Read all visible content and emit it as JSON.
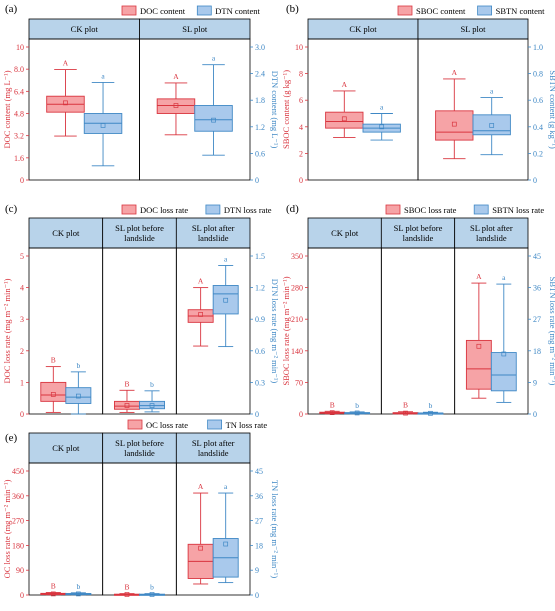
{
  "colors": {
    "red_fill": "#f6a3a6",
    "red_line": "#d9353f",
    "blue_fill": "#a9c9ec",
    "blue_line": "#3f88c5",
    "strip": "#b8d3ea"
  },
  "chart_data": [
    {
      "panel": "(a)",
      "type": "box",
      "legend": [
        "DOC content",
        "DTN content"
      ],
      "ylabel_left": "DOC content (mg L⁻¹)",
      "ylabel_right": "DTN content (mg L⁻¹)",
      "ylim_left": [
        0,
        10
      ],
      "ylim_right": [
        0,
        3.0
      ],
      "yticks_left": [
        "0",
        "1.6",
        "3.2",
        "4.8",
        "6.4",
        "8.0",
        "10"
      ],
      "yticks_right": [
        "0",
        "0.6",
        "1.2",
        "1.8",
        "2.4",
        "3.0"
      ],
      "facets": [
        {
          "label": "CK plot",
          "boxes": [
            {
              "series": "DOC content",
              "min": 3.3,
              "q1": 5.1,
              "median": 5.7,
              "q3": 6.3,
              "max": 8.3,
              "mean": 5.8,
              "sig": "A"
            },
            {
              "series": "DTN content",
              "min": 0.32,
              "q1": 1.05,
              "median": 1.28,
              "q3": 1.5,
              "max": 2.2,
              "mean": 1.23,
              "sig": "a"
            }
          ]
        },
        {
          "label": "SL plot",
          "boxes": [
            {
              "series": "DOC content",
              "min": 3.4,
              "q1": 5.0,
              "median": 5.6,
              "q3": 6.1,
              "max": 7.3,
              "mean": 5.6,
              "sig": "A"
            },
            {
              "series": "DTN content",
              "min": 0.56,
              "q1": 1.1,
              "median": 1.36,
              "q3": 1.68,
              "max": 2.6,
              "mean": 1.35,
              "sig": "a"
            }
          ]
        }
      ]
    },
    {
      "panel": "(b)",
      "type": "box",
      "legend": [
        "SBOC content",
        "SBTN content"
      ],
      "ylabel_left": "SBOC content (g kg⁻¹)",
      "ylabel_right": "SBTN content (g kg⁻¹)",
      "ylim_left": [
        0,
        10
      ],
      "ylim_right": [
        0,
        1.0
      ],
      "yticks_left": [
        "0",
        "2",
        "4",
        "6",
        "8",
        "10"
      ],
      "yticks_right": [
        "0",
        "0.2",
        "0.4",
        "0.6",
        "0.8",
        "1.0"
      ],
      "facets": [
        {
          "label": "CK plot",
          "boxes": [
            {
              "series": "SBOC content",
              "min": 3.2,
              "q1": 3.9,
              "median": 4.4,
              "q3": 5.1,
              "max": 6.7,
              "mean": 4.6,
              "sig": "A"
            },
            {
              "series": "SBTN content",
              "min": 0.3,
              "q1": 0.36,
              "median": 0.39,
              "q3": 0.42,
              "max": 0.5,
              "mean": 0.4,
              "sig": "a"
            }
          ]
        },
        {
          "label": "SL plot",
          "boxes": [
            {
              "series": "SBOC content",
              "min": 1.6,
              "q1": 3.0,
              "median": 3.6,
              "q3": 5.2,
              "max": 7.6,
              "mean": 4.2,
              "sig": "A"
            },
            {
              "series": "SBTN content",
              "min": 0.19,
              "q1": 0.34,
              "median": 0.37,
              "q3": 0.49,
              "max": 0.62,
              "mean": 0.41,
              "sig": "a"
            }
          ]
        }
      ]
    },
    {
      "panel": "(c)",
      "type": "box",
      "legend": [
        "DOC loss rate",
        "DTN loss rate"
      ],
      "ylabel_left": "DOC loss rate (mg m⁻² min⁻¹)",
      "ylabel_right": "DTN loss rate (mg m⁻² min⁻¹)",
      "ylim_left": [
        0,
        5
      ],
      "ylim_right": [
        0,
        1.5
      ],
      "yticks_left": [
        "0",
        "1",
        "2",
        "3",
        "4",
        "5"
      ],
      "yticks_right": [
        "0",
        "0.3",
        "0.6",
        "0.9",
        "1.2",
        "1.5"
      ],
      "facets": [
        {
          "label": "CK plot",
          "boxes": [
            {
              "series": "DOC loss rate",
              "min": 0.05,
              "q1": 0.4,
              "median": 0.6,
              "q3": 1.0,
              "max": 1.5,
              "mean": 0.62,
              "sig": "B"
            },
            {
              "series": "DTN loss rate",
              "min": 0.0,
              "q1": 0.1,
              "median": 0.16,
              "q3": 0.25,
              "max": 0.4,
              "mean": 0.17,
              "sig": "b"
            }
          ]
        },
        {
          "label": "SL plot before landslide",
          "boxes": [
            {
              "series": "DOC loss rate",
              "min": 0.05,
              "q1": 0.15,
              "median": 0.25,
              "q3": 0.4,
              "max": 0.75,
              "mean": 0.27,
              "sig": "B"
            },
            {
              "series": "DTN loss rate",
              "min": 0.02,
              "q1": 0.05,
              "median": 0.08,
              "q3": 0.12,
              "max": 0.22,
              "mean": 0.08,
              "sig": "b"
            }
          ]
        },
        {
          "label": "SL plot after landslide",
          "boxes": [
            {
              "series": "DOC loss rate",
              "min": 2.15,
              "q1": 2.9,
              "median": 3.1,
              "q3": 3.3,
              "max": 4.0,
              "mean": 3.15,
              "sig": "A"
            },
            {
              "series": "DTN loss rate",
              "min": 0.64,
              "q1": 0.95,
              "median": 1.14,
              "q3": 1.22,
              "max": 1.41,
              "mean": 1.08,
              "sig": "a"
            }
          ]
        }
      ]
    },
    {
      "panel": "(d)",
      "type": "box",
      "legend": [
        "SBOC loss rate",
        "SBTN loss rate"
      ],
      "ylabel_left": "SBOC loss rate (mg m⁻² min⁻¹)",
      "ylabel_right": "SBTN loss rate (mg m⁻² min⁻¹)",
      "ylim_left": [
        0,
        350
      ],
      "ylim_right": [
        0,
        45
      ],
      "yticks_left": [
        "0",
        "70",
        "140",
        "210",
        "280",
        "350"
      ],
      "yticks_right": [
        "0",
        "9",
        "18",
        "27",
        "36",
        "45"
      ],
      "facets": [
        {
          "label": "CK plot",
          "boxes": [
            {
              "series": "SBOC loss rate",
              "min": 0.5,
              "q1": 1.5,
              "median": 3,
              "q3": 4,
              "max": 6,
              "mean": 3,
              "sig": "B"
            },
            {
              "series": "SBTN loss rate",
              "min": 0.05,
              "q1": 0.2,
              "median": 0.3,
              "q3": 0.4,
              "max": 0.6,
              "mean": 0.3,
              "sig": "b"
            }
          ]
        },
        {
          "label": "SL plot before landslide",
          "boxes": [
            {
              "series": "SBOC loss rate",
              "min": 0.3,
              "q1": 1,
              "median": 2,
              "q3": 3,
              "max": 5,
              "mean": 2,
              "sig": "B"
            },
            {
              "series": "SBTN loss rate",
              "min": 0.03,
              "q1": 0.1,
              "median": 0.2,
              "q3": 0.3,
              "max": 0.5,
              "mean": 0.2,
              "sig": "b"
            }
          ]
        },
        {
          "label": "SL plot after landslide",
          "boxes": [
            {
              "series": "SBOC loss rate",
              "min": 35,
              "q1": 55,
              "median": 100,
              "q3": 163,
              "max": 290,
              "mean": 150,
              "sig": "A"
            },
            {
              "series": "SBTN loss rate",
              "min": 3.3,
              "q1": 6.6,
              "median": 11.1,
              "q3": 17.5,
              "max": 37,
              "mean": 17.1,
              "sig": "a"
            }
          ]
        }
      ]
    },
    {
      "panel": "(e)",
      "type": "box",
      "legend": [
        "OC loss rate",
        "TN loss rate"
      ],
      "ylabel_left": "OC loss rate (mg m⁻² min⁻¹)",
      "ylabel_right": "TN loss rate (mg m⁻² min⁻¹)",
      "ylim_left": [
        0,
        450
      ],
      "ylim_right": [
        0,
        45
      ],
      "yticks_left": [
        "0",
        "90",
        "180",
        "270",
        "360",
        "450"
      ],
      "yticks_right": [
        "0",
        "9",
        "18",
        "27",
        "36",
        "45"
      ],
      "facets": [
        {
          "label": "CK plot",
          "boxes": [
            {
              "series": "OC loss rate",
              "min": 1,
              "q1": 2,
              "median": 4,
              "q3": 6,
              "max": 9,
              "mean": 4,
              "sig": "B"
            },
            {
              "series": "TN loss rate",
              "min": 0.1,
              "q1": 0.2,
              "median": 0.35,
              "q3": 0.55,
              "max": 0.8,
              "mean": 0.4,
              "sig": "b"
            }
          ]
        },
        {
          "label": "SL plot before landslide",
          "boxes": [
            {
              "series": "OC loss rate",
              "min": 0.5,
              "q1": 1,
              "median": 2,
              "q3": 3,
              "max": 5,
              "mean": 2,
              "sig": "B"
            },
            {
              "series": "TN loss rate",
              "min": 0.05,
              "q1": 0.1,
              "median": 0.2,
              "q3": 0.3,
              "max": 0.5,
              "mean": 0.2,
              "sig": "b"
            }
          ]
        },
        {
          "label": "SL plot after landslide",
          "boxes": [
            {
              "series": "OC loss rate",
              "min": 40,
              "q1": 60,
              "median": 122,
              "q3": 184,
              "max": 370,
              "mean": 170,
              "sig": "A"
            },
            {
              "series": "TN loss rate",
              "min": 4.5,
              "q1": 6.5,
              "median": 13.5,
              "q3": 20.5,
              "max": 37,
              "mean": 18.5,
              "sig": "a"
            }
          ]
        }
      ]
    }
  ]
}
